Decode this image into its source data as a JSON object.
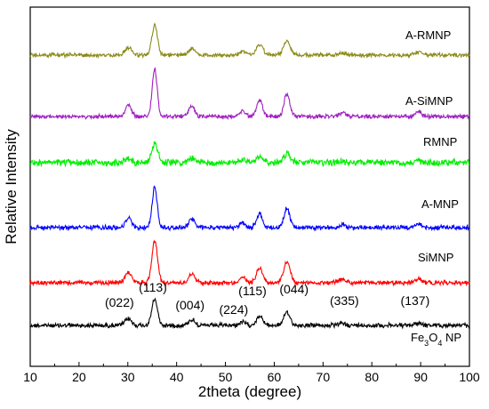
{
  "chart_data": {
    "type": "line",
    "title": "",
    "xlabel": "2theta (degree)",
    "ylabel": "Relative Intensity",
    "xlim": [
      10,
      100
    ],
    "x_ticks": [
      "10",
      "20",
      "30",
      "40",
      "50",
      "60",
      "70",
      "80",
      "90",
      "100"
    ],
    "grid": false,
    "legend": "none (series labelled directly above each trace)",
    "series": [
      {
        "name": "Fe3O4 NP",
        "color": "#000000",
        "peak_scale": 0.65
      },
      {
        "name": "SiMNP",
        "color": "#ff0000",
        "peak_scale": 1.05
      },
      {
        "name": "A-MNP",
        "color": "#0000ff",
        "peak_scale": 1.0
      },
      {
        "name": "RMNP",
        "color": "#00ee00",
        "peak_scale": 0.45
      },
      {
        "name": "A-SiMNP",
        "color": "#a020c0",
        "peak_scale": 1.2
      },
      {
        "name": "A-RMNP",
        "color": "#8b8b1a",
        "peak_scale": 0.75
      }
    ],
    "series_labels": {
      "fe3o4_main": "Fe",
      "fe3o4_sub3": "3",
      "fe3o4_o": "O",
      "fe3o4_sub4": "4",
      "fe3o4_np": " NP"
    },
    "peaks": [
      {
        "x": 30.1,
        "intensity": 0.25
      },
      {
        "x": 35.5,
        "intensity": 1.0
      },
      {
        "x": 43.1,
        "intensity": 0.22
      },
      {
        "x": 53.5,
        "intensity": 0.12
      },
      {
        "x": 57.0,
        "intensity": 0.35
      },
      {
        "x": 62.6,
        "intensity": 0.48
      },
      {
        "x": 74.0,
        "intensity": 0.08
      },
      {
        "x": 89.6,
        "intensity": 0.1
      }
    ],
    "annotations": [
      {
        "text": "(022)",
        "x": 30.1
      },
      {
        "text": "(113)",
        "x": 35.5
      },
      {
        "text": "(004)",
        "x": 43.1
      },
      {
        "text": "(224)",
        "x": 53.5
      },
      {
        "text": "(115)",
        "x": 57.0
      },
      {
        "text": "(044)",
        "x": 62.6
      },
      {
        "text": "(335)",
        "x": 74.0
      },
      {
        "text": "(137)",
        "x": 89.6
      }
    ]
  }
}
